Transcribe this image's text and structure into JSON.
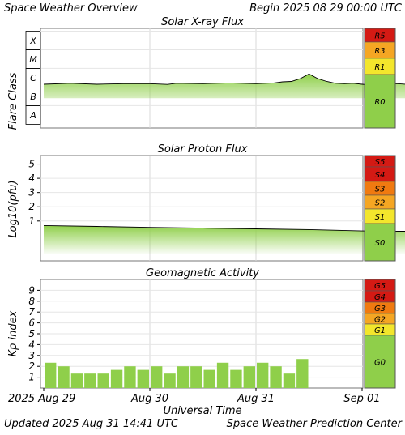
{
  "header": {
    "title": "Space Weather Overview",
    "begin_label": "Begin 2025 08 29 00:00 UTC",
    "updated_label": "Updated 2025 Aug 31 14:41 UTC",
    "credit": "Space Weather Prediction Center"
  },
  "colors": {
    "green": "#8fcf4a",
    "yellow": "#f3e62c",
    "orange": "#f5a623",
    "dark_orange": "#f07a10",
    "red": "#d41a14",
    "line": "#000000"
  },
  "chart_data": [
    {
      "type": "area",
      "title": "Solar X-ray Flux",
      "ylabel": "Flare Class",
      "y_categories": [
        "A",
        "B",
        "C",
        "M",
        "X"
      ],
      "scale_levels": [
        {
          "label": "R5",
          "color": "#d41a14"
        },
        {
          "label": "R3",
          "color": "#f5a623"
        },
        {
          "label": "R1",
          "color": "#f3e62c"
        },
        {
          "label": "R0",
          "color": "#8fcf4a"
        }
      ],
      "series": [
        {
          "x_hours": [
            0,
            6,
            12,
            18,
            24,
            28,
            30,
            36,
            42,
            48,
            52,
            54,
            56,
            58,
            60,
            62,
            64,
            66,
            68,
            70,
            72,
            74,
            76,
            77,
            78,
            79,
            80,
            82,
            84,
            86,
            88
          ],
          "log_flux": [
            -5.85,
            -5.8,
            -5.85,
            -5.82,
            -5.82,
            -5.86,
            -5.8,
            -5.82,
            -5.78,
            -5.82,
            -5.78,
            -5.72,
            -5.7,
            -5.55,
            -5.3,
            -5.55,
            -5.7,
            -5.8,
            -5.82,
            -5.8,
            -5.85,
            -5.9,
            -6.3,
            -7.15,
            -5.85,
            -5.82,
            -5.82,
            -5.85,
            -5.8,
            -5.8,
            -5.8
          ]
        }
      ]
    },
    {
      "type": "area",
      "title": "Solar Proton Flux",
      "ylabel": "Log10(pfu)",
      "y_ticks": [
        1,
        2,
        3,
        4,
        5
      ],
      "scale_levels": [
        {
          "label": "S5",
          "color": "#d41a14"
        },
        {
          "label": "S4",
          "color": "#d41a14"
        },
        {
          "label": "S3",
          "color": "#f07a10"
        },
        {
          "label": "S2",
          "color": "#f5a623"
        },
        {
          "label": "S1",
          "color": "#f3e62c"
        },
        {
          "label": "S0",
          "color": "#8fcf4a"
        }
      ],
      "series": [
        {
          "x_hours": [
            0,
            12,
            24,
            36,
            48,
            60,
            72,
            80,
            88
          ],
          "log_pfu": [
            0.68,
            0.62,
            0.55,
            0.5,
            0.45,
            0.4,
            0.3,
            0.28,
            0.28
          ]
        }
      ]
    },
    {
      "type": "bar",
      "title": "Geomagnetic Activity",
      "ylabel": "Kp index",
      "y_ticks": [
        1,
        2,
        3,
        4,
        5,
        6,
        7,
        8,
        9
      ],
      "bar_width_hours": 3,
      "scale_levels": [
        {
          "label": "G5",
          "color": "#d41a14"
        },
        {
          "label": "G4",
          "color": "#d41a14"
        },
        {
          "label": "G3",
          "color": "#f07a10"
        },
        {
          "label": "G2",
          "color": "#f5a623"
        },
        {
          "label": "G1",
          "color": "#f3e62c"
        },
        {
          "label": "G0",
          "color": "#8fcf4a"
        }
      ],
      "values": [
        2.33,
        2.0,
        1.33,
        1.33,
        1.33,
        1.67,
        2.0,
        1.67,
        2.0,
        1.33,
        2.0,
        2.0,
        1.67,
        2.33,
        1.67,
        2.0,
        2.33,
        2.0,
        1.33,
        2.67
      ]
    }
  ],
  "x_axis": {
    "label": "Universal Time",
    "ticks": [
      "2025 Aug 29",
      "Aug 30",
      "Aug 31",
      "Sep 01"
    ],
    "range_hours": [
      0,
      72
    ]
  }
}
